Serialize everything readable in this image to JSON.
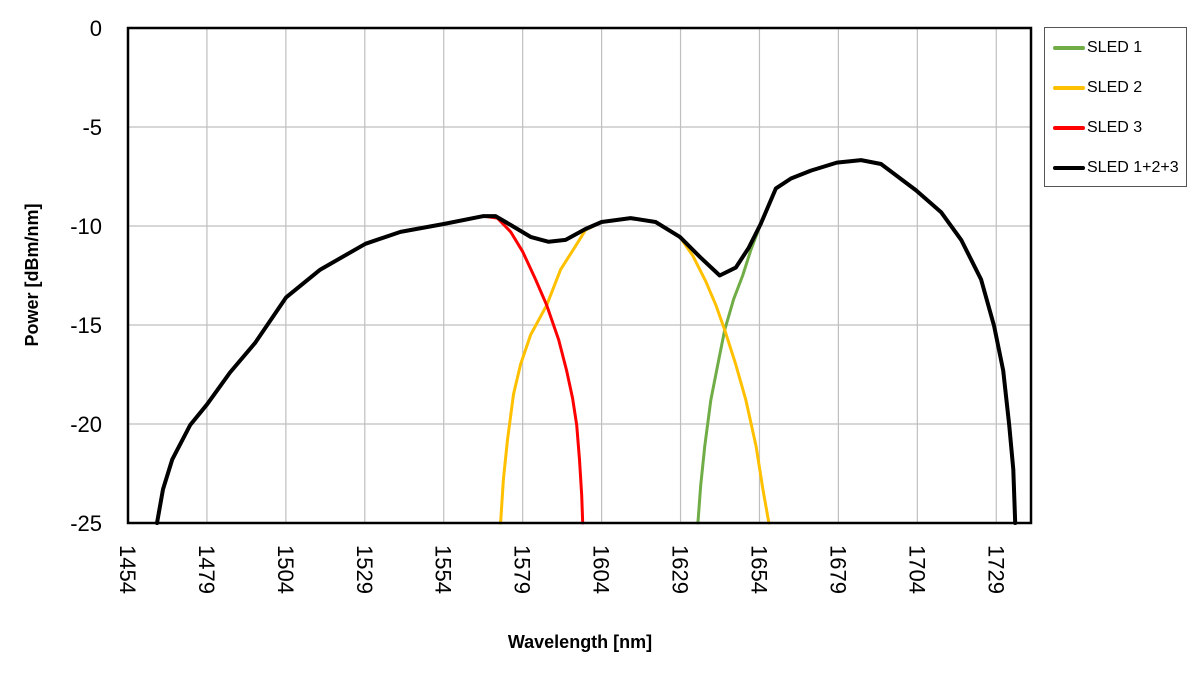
{
  "chart_data": {
    "type": "line",
    "title": "",
    "xlabel": "Wavelength [nm]",
    "ylabel": "Power [dBm/nm]",
    "xlim": [
      1454,
      1740
    ],
    "ylim": [
      -25,
      0
    ],
    "x_ticks": [
      1454,
      1479,
      1504,
      1529,
      1554,
      1579,
      1604,
      1629,
      1654,
      1679,
      1704,
      1729
    ],
    "y_ticks": [
      0,
      -5,
      -10,
      -15,
      -20,
      -25
    ],
    "grid": true,
    "legend_position": "right",
    "series": [
      {
        "name": "SLED 1",
        "color": "#70AD47",
        "points": [
          [
            1634.5,
            -25
          ],
          [
            1635.4,
            -23.1
          ],
          [
            1636.7,
            -21.1
          ],
          [
            1638.6,
            -18.8
          ],
          [
            1640.8,
            -17.0
          ],
          [
            1643.0,
            -15.25
          ],
          [
            1645.8,
            -13.7
          ],
          [
            1648.7,
            -12.5
          ],
          [
            1651.3,
            -11.2
          ],
          [
            1654.4,
            -9.9
          ],
          [
            1659.2,
            -8.1
          ],
          [
            1664.0,
            -7.6
          ],
          [
            1670.3,
            -7.2
          ],
          [
            1678.5,
            -6.8
          ],
          [
            1686.2,
            -6.67
          ],
          [
            1692.5,
            -6.87
          ],
          [
            1703.6,
            -8.2
          ],
          [
            1711.5,
            -9.3
          ],
          [
            1717.9,
            -10.7
          ],
          [
            1724.2,
            -12.7
          ],
          [
            1728.3,
            -15.05
          ],
          [
            1731.2,
            -17.3
          ],
          [
            1733.1,
            -20.05
          ],
          [
            1734.4,
            -22.3
          ],
          [
            1735.0,
            -25
          ]
        ]
      },
      {
        "name": "SLED 2",
        "color": "#FFC000",
        "points": [
          [
            1572.0,
            -25
          ],
          [
            1572.9,
            -22.8
          ],
          [
            1574.2,
            -20.8
          ],
          [
            1576.1,
            -18.5
          ],
          [
            1578.3,
            -17.0
          ],
          [
            1581.5,
            -15.5
          ],
          [
            1586.6,
            -14.0
          ],
          [
            1591.0,
            -12.2
          ],
          [
            1595.8,
            -11.0
          ],
          [
            1598.9,
            -10.2
          ],
          [
            1604.0,
            -9.8
          ],
          [
            1613.2,
            -9.6
          ],
          [
            1621.1,
            -9.8
          ],
          [
            1628.8,
            -10.55
          ],
          [
            1632.9,
            -11.5
          ],
          [
            1637.0,
            -12.8
          ],
          [
            1640.2,
            -14.0
          ],
          [
            1643.0,
            -15.25
          ],
          [
            1646.5,
            -17.0
          ],
          [
            1649.7,
            -18.8
          ],
          [
            1652.9,
            -21.1
          ],
          [
            1655.1,
            -23.3
          ],
          [
            1657.0,
            -25
          ]
        ]
      },
      {
        "name": "SLED 3",
        "color": "#FF0000",
        "points": [
          [
            1463.2,
            -25
          ],
          [
            1465.1,
            -23.3
          ],
          [
            1468.0,
            -21.8
          ],
          [
            1473.7,
            -20.05
          ],
          [
            1479.1,
            -19.0
          ],
          [
            1486.3,
            -17.4
          ],
          [
            1494.3,
            -15.9
          ],
          [
            1504.1,
            -13.6
          ],
          [
            1514.9,
            -12.2
          ],
          [
            1529.2,
            -10.9
          ],
          [
            1540.3,
            -10.3
          ],
          [
            1554.0,
            -9.9
          ],
          [
            1566.6,
            -9.5
          ],
          [
            1571.0,
            -9.6
          ],
          [
            1575.2,
            -10.3
          ],
          [
            1579.0,
            -11.3
          ],
          [
            1583.1,
            -12.7
          ],
          [
            1586.6,
            -14.0
          ],
          [
            1590.4,
            -15.75
          ],
          [
            1592.9,
            -17.3
          ],
          [
            1594.8,
            -18.7
          ],
          [
            1596.1,
            -20.05
          ],
          [
            1597.0,
            -21.8
          ],
          [
            1597.7,
            -23.6
          ],
          [
            1598.0,
            -25
          ]
        ]
      },
      {
        "name": "SLED 1+2+3",
        "color": "#000000",
        "points": [
          [
            1463.2,
            -25
          ],
          [
            1465.1,
            -23.3
          ],
          [
            1468.0,
            -21.8
          ],
          [
            1473.7,
            -20.05
          ],
          [
            1479.1,
            -19.0
          ],
          [
            1486.3,
            -17.4
          ],
          [
            1494.3,
            -15.9
          ],
          [
            1504.1,
            -13.6
          ],
          [
            1514.9,
            -12.2
          ],
          [
            1529.2,
            -10.9
          ],
          [
            1540.3,
            -10.3
          ],
          [
            1554.0,
            -9.9
          ],
          [
            1566.6,
            -9.5
          ],
          [
            1570.4,
            -9.5
          ],
          [
            1575.2,
            -9.95
          ],
          [
            1581.5,
            -10.55
          ],
          [
            1587.2,
            -10.8
          ],
          [
            1592.6,
            -10.7
          ],
          [
            1598.9,
            -10.15
          ],
          [
            1604.0,
            -9.8
          ],
          [
            1613.2,
            -9.6
          ],
          [
            1621.1,
            -9.8
          ],
          [
            1628.8,
            -10.55
          ],
          [
            1635.4,
            -11.6
          ],
          [
            1641.4,
            -12.5
          ],
          [
            1646.5,
            -12.1
          ],
          [
            1650.6,
            -11.1
          ],
          [
            1654.4,
            -9.9
          ],
          [
            1659.2,
            -8.1
          ],
          [
            1664.0,
            -7.6
          ],
          [
            1670.3,
            -7.2
          ],
          [
            1678.5,
            -6.8
          ],
          [
            1686.2,
            -6.67
          ],
          [
            1692.5,
            -6.87
          ],
          [
            1703.6,
            -8.2
          ],
          [
            1711.5,
            -9.3
          ],
          [
            1717.9,
            -10.7
          ],
          [
            1724.2,
            -12.7
          ],
          [
            1728.3,
            -15.05
          ],
          [
            1731.2,
            -17.3
          ],
          [
            1733.1,
            -20.05
          ],
          [
            1734.4,
            -22.3
          ],
          [
            1735.0,
            -25
          ]
        ]
      }
    ]
  },
  "legend": {
    "items": [
      {
        "label": "SLED 1",
        "color": "#70AD47"
      },
      {
        "label": "SLED 2",
        "color": "#FFC000"
      },
      {
        "label": "SLED 3",
        "color": "#FF0000"
      },
      {
        "label": "SLED 1+2+3",
        "color": "#000000"
      }
    ]
  }
}
